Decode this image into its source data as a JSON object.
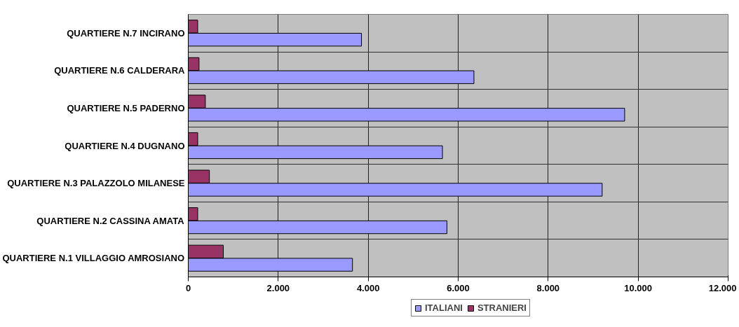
{
  "chart_data": {
    "type": "bar",
    "orientation": "horizontal",
    "categories": [
      "QUARTIERE N.7 INCIRANO",
      "QUARTIERE N.6 CALDERARA",
      "QUARTIERE N.5 PADERNO",
      "QUARTIERE N.4 DUGNANO",
      "QUARTIERE N.3 PALAZZOLO MILANESE",
      "QUARTIERE N.2 CASSINA AMATA",
      "QUARTIERE N.1 VILLAGGIO AMROSIANO"
    ],
    "series": [
      {
        "name": "ITALIANI",
        "color": "#9999ff",
        "values": [
          3850,
          6350,
          9700,
          5650,
          9200,
          5750,
          3650
        ]
      },
      {
        "name": "STRANIERI",
        "color": "#993366",
        "values": [
          210,
          240,
          380,
          210,
          470,
          210,
          780
        ]
      }
    ],
    "xlim": [
      0,
      12000
    ],
    "xticks": [
      0,
      {
        "value": 2000,
        "label": "2.000"
      },
      {
        "value": 4000,
        "label": "4.000"
      },
      {
        "value": 6000,
        "label": "6.000"
      },
      {
        "value": 8000,
        "label": "8.000"
      },
      {
        "value": 10000,
        "label": "10.000"
      },
      {
        "value": 12000,
        "label": "12.000"
      }
    ],
    "grid": true,
    "legend": "bottom"
  }
}
